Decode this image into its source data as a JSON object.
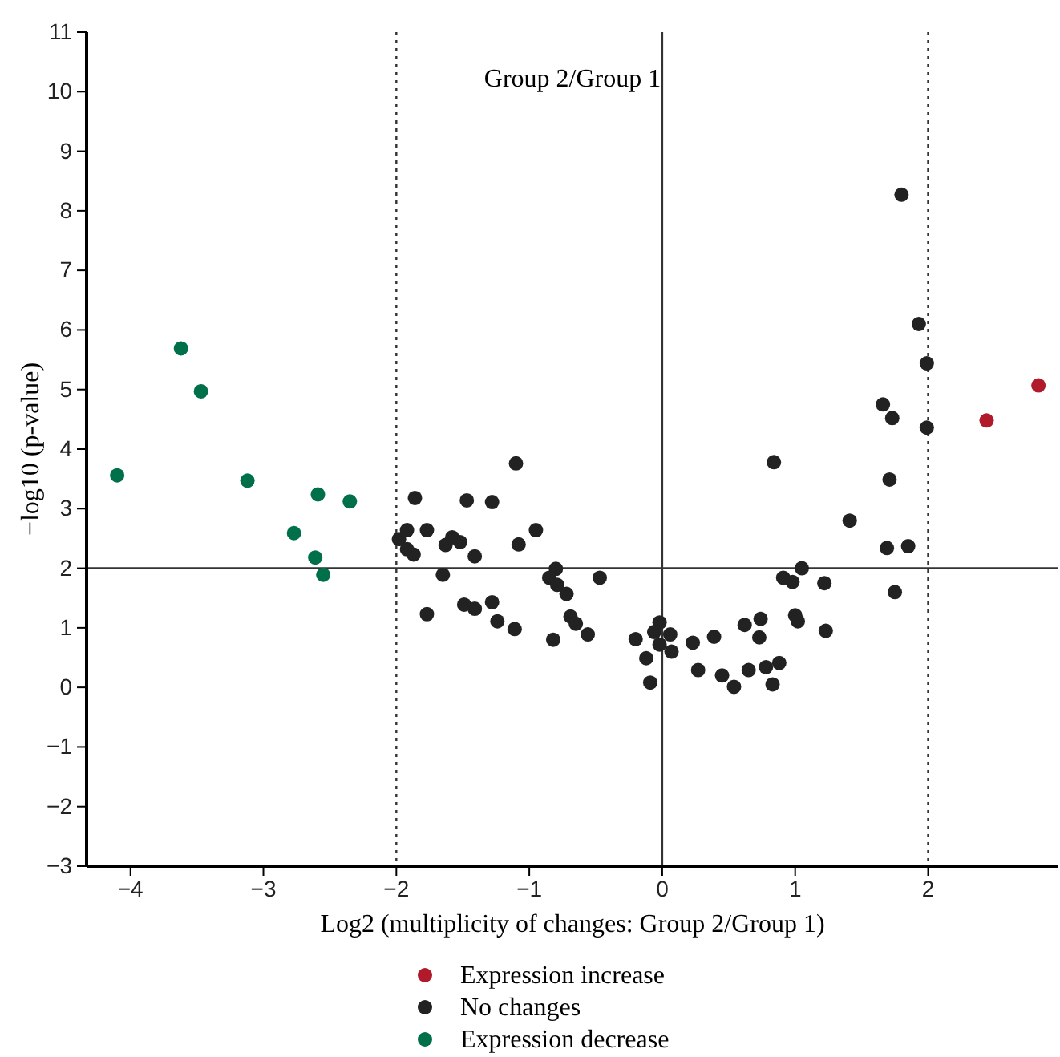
{
  "chart_data": {
    "type": "scatter",
    "title": "Group 2/Group 1",
    "xlabel": "Log2 (multiplicity of changes: Group 2/Group 1)",
    "ylabel": "−log10 (p-value)",
    "xlim": [
      -4.33,
      2.98
    ],
    "xticks": [
      -4,
      -3,
      -2,
      -1,
      0,
      1,
      2
    ],
    "ylim": [
      -3,
      11
    ],
    "yticks": [
      -3,
      -2,
      -1,
      0,
      1,
      2,
      3,
      4,
      5,
      6,
      7,
      8,
      9,
      10,
      11
    ],
    "grid": false,
    "legend": "bottom",
    "marker": "circle",
    "ref_lines": [
      {
        "axis": "x",
        "value": -2,
        "line_style": "dotted",
        "color": "#333333"
      },
      {
        "axis": "x",
        "value": 0,
        "line_style": "solid",
        "color": "#333333"
      },
      {
        "axis": "x",
        "value": 2,
        "line_style": "dotted",
        "color": "#333333"
      },
      {
        "axis": "y",
        "value": 2,
        "line_style": "solid",
        "color": "#333333"
      }
    ],
    "series": [
      {
        "name": "Expression increase",
        "color": "#b01a2a",
        "x": [
          2.44,
          2.83
        ],
        "values": [
          4.48,
          5.07
        ]
      },
      {
        "name": "No changes",
        "color": "#222222",
        "x": [
          -1.1,
          -1.86,
          -1.47,
          -1.28,
          -1.92,
          -1.77,
          -0.95,
          -1.98,
          -1.58,
          -1.52,
          -1.63,
          -1.92,
          -1.87,
          -1.08,
          -1.41,
          -1.65,
          -0.8,
          -0.85,
          -0.79,
          -0.72,
          -0.47,
          -1.49,
          -1.41,
          -1.28,
          -1.77,
          -1.24,
          -1.11,
          -0.69,
          -0.65,
          -0.82,
          -0.56,
          1.8,
          1.93,
          1.99,
          1.66,
          1.73,
          1.99,
          0.84,
          1.71,
          1.41,
          1.69,
          1.85,
          1.75,
          1.05,
          0.91,
          0.98,
          1.22,
          1.0,
          1.02,
          1.23,
          0.74,
          0.62,
          0.73,
          0.39,
          0.23,
          -0.02,
          -0.06,
          0.06,
          -0.2,
          -0.02,
          0.07,
          -0.12,
          -0.09,
          0.27,
          0.45,
          0.54,
          0.65,
          0.78,
          0.88,
          0.83
        ],
        "values": [
          3.76,
          3.18,
          3.14,
          3.11,
          2.64,
          2.64,
          2.64,
          2.49,
          2.52,
          2.44,
          2.39,
          2.32,
          2.23,
          2.4,
          2.2,
          1.89,
          1.99,
          1.84,
          1.72,
          1.57,
          1.84,
          1.39,
          1.32,
          1.43,
          1.23,
          1.11,
          0.98,
          1.19,
          1.07,
          0.8,
          0.89,
          8.27,
          6.1,
          5.44,
          4.75,
          4.52,
          4.36,
          3.78,
          3.49,
          2.8,
          2.34,
          2.37,
          1.6,
          2.0,
          1.84,
          1.77,
          1.75,
          1.21,
          1.11,
          0.95,
          1.15,
          1.05,
          0.84,
          0.85,
          0.75,
          1.09,
          0.93,
          0.89,
          0.81,
          0.72,
          0.6,
          0.49,
          0.08,
          0.29,
          0.2,
          0.01,
          0.29,
          0.34,
          0.41,
          0.05
        ]
      },
      {
        "name": "Expression decrease",
        "color": "#00704a",
        "x": [
          -3.62,
          -3.47,
          -4.1,
          -3.12,
          -2.59,
          -2.35,
          -2.77,
          -2.61,
          -2.55
        ],
        "values": [
          5.69,
          4.97,
          3.56,
          3.47,
          3.24,
          3.12,
          2.59,
          2.18,
          1.89
        ]
      }
    ]
  }
}
